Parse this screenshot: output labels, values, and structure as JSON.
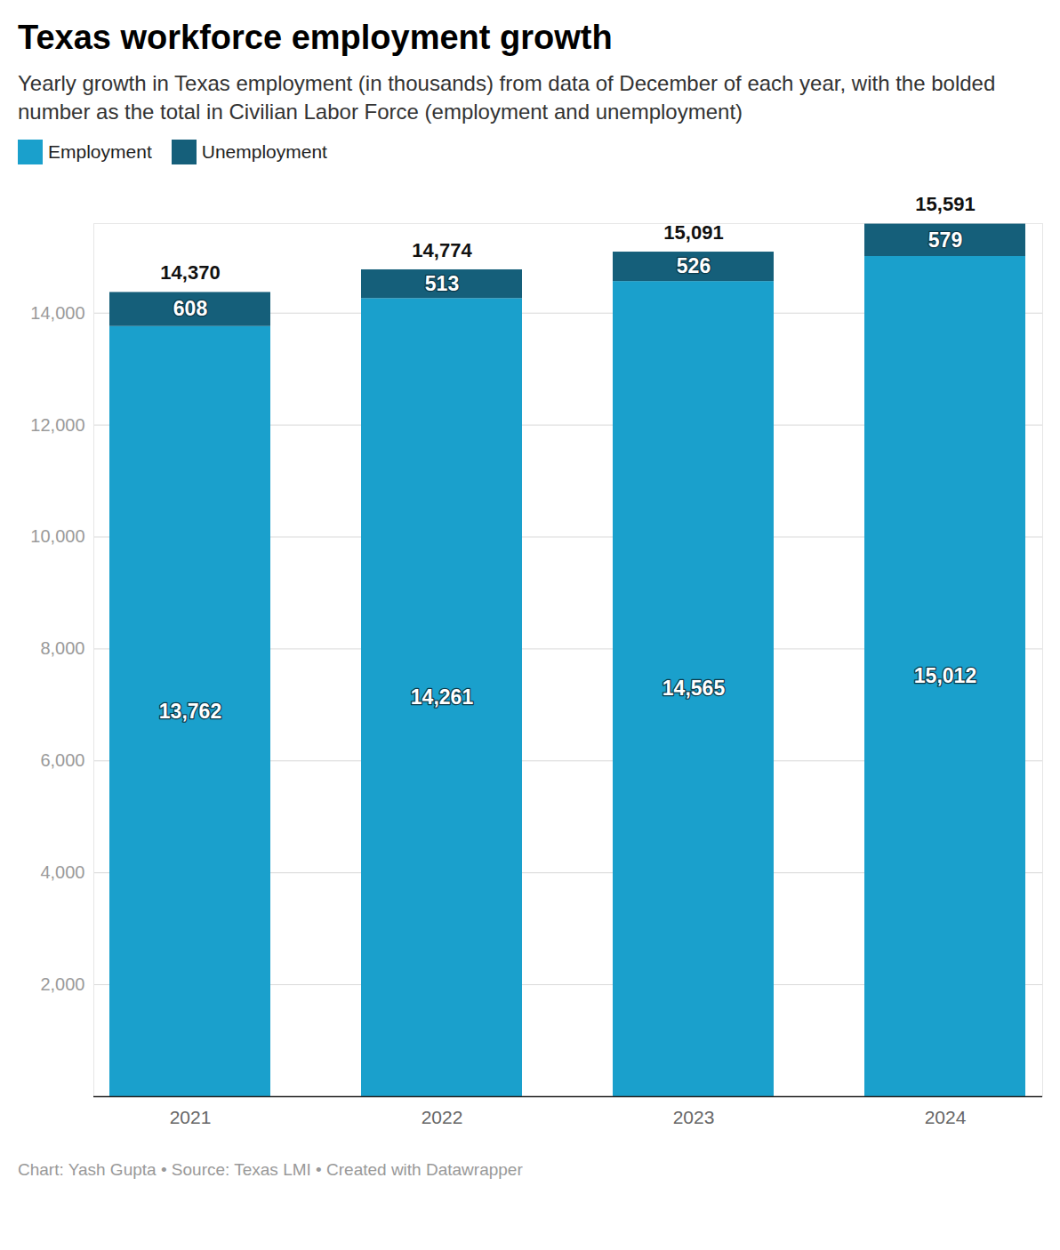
{
  "chart_data": {
    "type": "bar",
    "title": "Texas workforce employment growth",
    "subtitle": "Yearly growth in Texas employment (in thousands) from data of December of each year, with the bolded number as the total in Civilian Labor Force (employment and unemployment)",
    "caption": "Chart: Yash Gupta • Source: Texas LMI • Created with Datawrapper",
    "categories": [
      "2021",
      "2022",
      "2023",
      "2024"
    ],
    "series": [
      {
        "name": "Employment",
        "color": "#1aa0cc",
        "values": [
          13762,
          14261,
          14565,
          15012
        ],
        "value_labels": [
          "13,762",
          "14,261",
          "14,565",
          "15,012"
        ]
      },
      {
        "name": "Unemployment",
        "color": "#155f7a",
        "values": [
          608,
          513,
          526,
          579
        ]
      }
    ],
    "totals": [
      14370,
      14774,
      15091,
      15591
    ],
    "total_labels": [
      "14,370",
      "14,774",
      "15,091",
      "15,591"
    ],
    "ylim": [
      0,
      15600
    ],
    "yticks": [
      {
        "value": 2000,
        "label": "2,000"
      },
      {
        "value": 4000,
        "label": "4,000"
      },
      {
        "value": 6000,
        "label": "6,000"
      },
      {
        "value": 8000,
        "label": "8,000"
      },
      {
        "value": 10000,
        "label": "10,000"
      },
      {
        "value": 12000,
        "label": "12,000"
      },
      {
        "value": 14000,
        "label": "14,000"
      }
    ],
    "grid": true,
    "stacked": true,
    "data_labels": true,
    "legend": "top-left"
  }
}
